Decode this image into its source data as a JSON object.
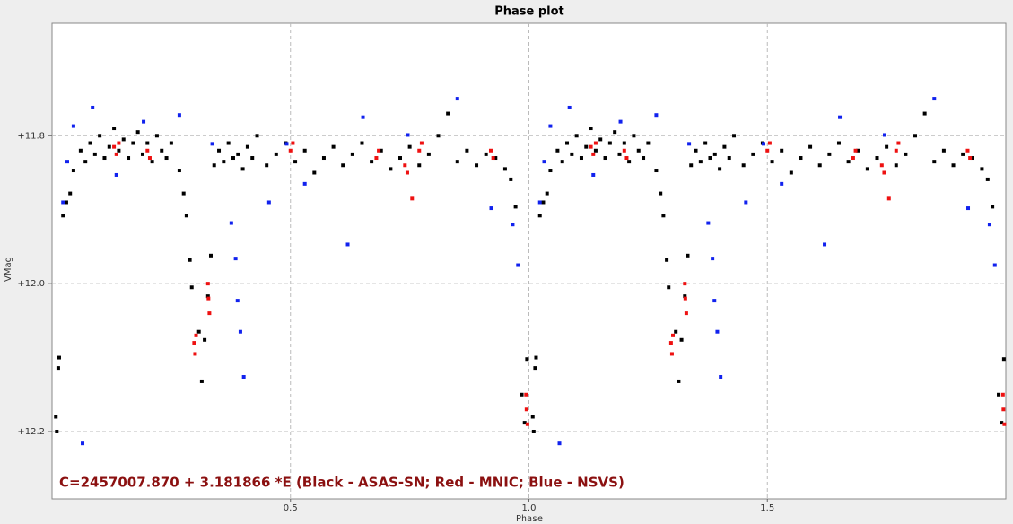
{
  "chart_data": {
    "type": "scatter",
    "title": "Phase plot",
    "xlabel": "Phase",
    "ylabel": "VMag",
    "annotation": "C=2457007.870 + 3.181866 *E (Black - ASAS-SN; Red - MNIC; Blue - NSVS)",
    "xlim": [
      0,
      2
    ],
    "ylim": [
      12.291,
      11.648
    ],
    "grid": true,
    "xticks": [
      0.5,
      {
        "value": 1.0,
        "label": "1.0"
      },
      1.5
    ],
    "yticks": [
      {
        "value": 11.8,
        "label": "+11.8"
      },
      {
        "value": 12.0,
        "label": "+12.0"
      },
      {
        "value": 12.2,
        "label": "+12.2"
      }
    ],
    "series": [
      {
        "color": "#000000",
        "x": [
          0.008,
          0.01,
          0.013,
          0.015,
          0.023,
          0.03,
          0.038,
          0.045,
          0.06,
          0.07,
          0.08,
          0.09,
          0.1,
          0.11,
          0.12,
          0.13,
          0.14,
          0.15,
          0.16,
          0.17,
          0.18,
          0.19,
          0.2,
          0.21,
          0.22,
          0.23,
          0.24,
          0.25,
          0.267,
          0.276,
          0.282,
          0.289,
          0.293,
          0.308,
          0.314,
          0.32,
          0.327,
          0.333,
          0.34,
          0.35,
          0.36,
          0.37,
          0.38,
          0.39,
          0.4,
          0.41,
          0.42,
          0.43,
          0.45,
          0.47,
          0.49,
          0.51,
          0.53,
          0.55,
          0.57,
          0.59,
          0.61,
          0.63,
          0.65,
          0.67,
          0.69,
          0.71,
          0.73,
          0.75,
          0.77,
          0.79,
          0.81,
          0.83,
          0.85,
          0.87,
          0.89,
          0.91,
          0.93,
          0.95,
          0.962,
          0.972,
          0.985,
          0.991,
          0.996,
          1.008,
          1.01,
          1.013,
          1.015,
          1.023,
          1.03,
          1.038,
          1.045,
          1.06,
          1.07,
          1.08,
          1.09,
          1.1,
          1.11,
          1.12,
          1.13,
          1.14,
          1.15,
          1.16,
          1.17,
          1.18,
          1.19,
          1.2,
          1.21,
          1.22,
          1.23,
          1.24,
          1.25,
          1.267,
          1.276,
          1.282,
          1.289,
          1.293,
          1.308,
          1.314,
          1.32,
          1.327,
          1.333,
          1.34,
          1.35,
          1.36,
          1.37,
          1.38,
          1.39,
          1.4,
          1.41,
          1.42,
          1.43,
          1.45,
          1.47,
          1.49,
          1.51,
          1.53,
          1.55,
          1.57,
          1.59,
          1.61,
          1.63,
          1.65,
          1.67,
          1.69,
          1.71,
          1.73,
          1.75,
          1.77,
          1.79,
          1.81,
          1.83,
          1.85,
          1.87,
          1.89,
          1.91,
          1.93,
          1.95,
          1.962,
          1.972,
          1.985,
          1.991,
          1.996
        ],
        "values": [
          12.18,
          12.2,
          12.114,
          12.1,
          11.908,
          11.89,
          11.878,
          11.847,
          11.82,
          11.835,
          11.81,
          11.825,
          11.8,
          11.83,
          11.815,
          11.79,
          11.82,
          11.805,
          11.83,
          11.81,
          11.795,
          11.825,
          11.81,
          11.835,
          11.8,
          11.82,
          11.83,
          11.81,
          11.847,
          11.878,
          11.908,
          11.968,
          12.005,
          12.065,
          12.132,
          12.076,
          12.017,
          11.962,
          11.84,
          11.82,
          11.835,
          11.81,
          11.83,
          11.825,
          11.845,
          11.815,
          11.83,
          11.8,
          11.84,
          11.825,
          11.81,
          11.835,
          11.82,
          11.85,
          11.83,
          11.815,
          11.84,
          11.825,
          11.81,
          11.835,
          11.82,
          11.845,
          11.83,
          11.815,
          11.84,
          11.825,
          11.8,
          11.77,
          11.835,
          11.82,
          11.84,
          11.825,
          11.83,
          11.845,
          11.859,
          11.896,
          12.15,
          12.188,
          12.102,
          12.18,
          12.2,
          12.114,
          12.1,
          11.908,
          11.89,
          11.878,
          11.847,
          11.82,
          11.835,
          11.81,
          11.825,
          11.8,
          11.83,
          11.815,
          11.79,
          11.82,
          11.805,
          11.83,
          11.81,
          11.795,
          11.825,
          11.81,
          11.835,
          11.8,
          11.82,
          11.83,
          11.81,
          11.847,
          11.878,
          11.908,
          11.968,
          12.005,
          12.065,
          12.132,
          12.076,
          12.017,
          11.962,
          11.84,
          11.82,
          11.835,
          11.81,
          11.83,
          11.825,
          11.845,
          11.815,
          11.83,
          11.8,
          11.84,
          11.825,
          11.81,
          11.835,
          11.82,
          11.85,
          11.83,
          11.815,
          11.84,
          11.825,
          11.81,
          11.835,
          11.82,
          11.845,
          11.83,
          11.815,
          11.84,
          11.825,
          11.8,
          11.77,
          11.835,
          11.82,
          11.84,
          11.825,
          11.83,
          11.845,
          11.859,
          11.896,
          12.15,
          12.188,
          12.102
        ]
      },
      {
        "color": "#ee1111",
        "x": [
          0.13,
          0.135,
          0.14,
          0.2,
          0.205,
          0.298,
          0.3,
          0.302,
          0.327,
          0.328,
          0.33,
          0.5,
          0.505,
          0.68,
          0.685,
          0.74,
          0.745,
          0.755,
          0.77,
          0.775,
          0.92,
          0.925,
          0.994,
          0.995,
          0.997,
          1.13,
          1.135,
          1.14,
          1.2,
          1.205,
          1.298,
          1.3,
          1.302,
          1.327,
          1.328,
          1.33,
          1.5,
          1.505,
          1.68,
          1.685,
          1.74,
          1.745,
          1.755,
          1.77,
          1.775,
          1.92,
          1.925,
          1.994,
          1.995,
          1.997
        ],
        "values": [
          11.815,
          11.825,
          11.81,
          11.82,
          11.83,
          12.08,
          12.095,
          12.07,
          12.0,
          12.02,
          12.04,
          11.82,
          11.81,
          11.83,
          11.82,
          11.84,
          11.85,
          11.885,
          11.82,
          11.81,
          11.82,
          11.83,
          12.15,
          12.17,
          12.19,
          11.815,
          11.825,
          11.81,
          11.82,
          11.83,
          12.08,
          12.095,
          12.07,
          12.0,
          12.02,
          12.04,
          11.82,
          11.81,
          11.83,
          11.82,
          11.84,
          11.85,
          11.885,
          11.82,
          11.81,
          11.82,
          11.83,
          12.15,
          12.17,
          12.19
        ]
      },
      {
        "color": "#1122ee",
        "x": [
          0.023,
          0.032,
          0.045,
          0.064,
          0.085,
          0.135,
          0.192,
          0.267,
          0.336,
          0.376,
          0.385,
          0.389,
          0.395,
          0.402,
          0.455,
          0.492,
          0.53,
          0.62,
          0.652,
          0.746,
          0.85,
          0.921,
          0.966,
          0.977,
          1.023,
          1.032,
          1.045,
          1.064,
          1.085,
          1.135,
          1.192,
          1.267,
          1.336,
          1.376,
          1.385,
          1.389,
          1.395,
          1.402,
          1.455,
          1.492,
          1.53,
          1.62,
          1.652,
          1.746,
          1.85,
          1.921,
          1.966,
          1.977
        ],
        "values": [
          11.89,
          11.835,
          11.787,
          12.216,
          11.762,
          11.853,
          11.781,
          11.772,
          11.811,
          11.918,
          11.966,
          12.023,
          12.065,
          12.126,
          11.89,
          11.811,
          11.865,
          11.947,
          11.775,
          11.799,
          11.75,
          11.898,
          11.92,
          11.975,
          11.89,
          11.835,
          11.787,
          12.216,
          11.762,
          11.853,
          11.781,
          11.772,
          11.811,
          11.918,
          11.966,
          12.023,
          12.065,
          12.126,
          11.89,
          11.811,
          11.865,
          11.947,
          11.775,
          11.799,
          11.75,
          11.898,
          11.92,
          11.975
        ]
      }
    ]
  }
}
